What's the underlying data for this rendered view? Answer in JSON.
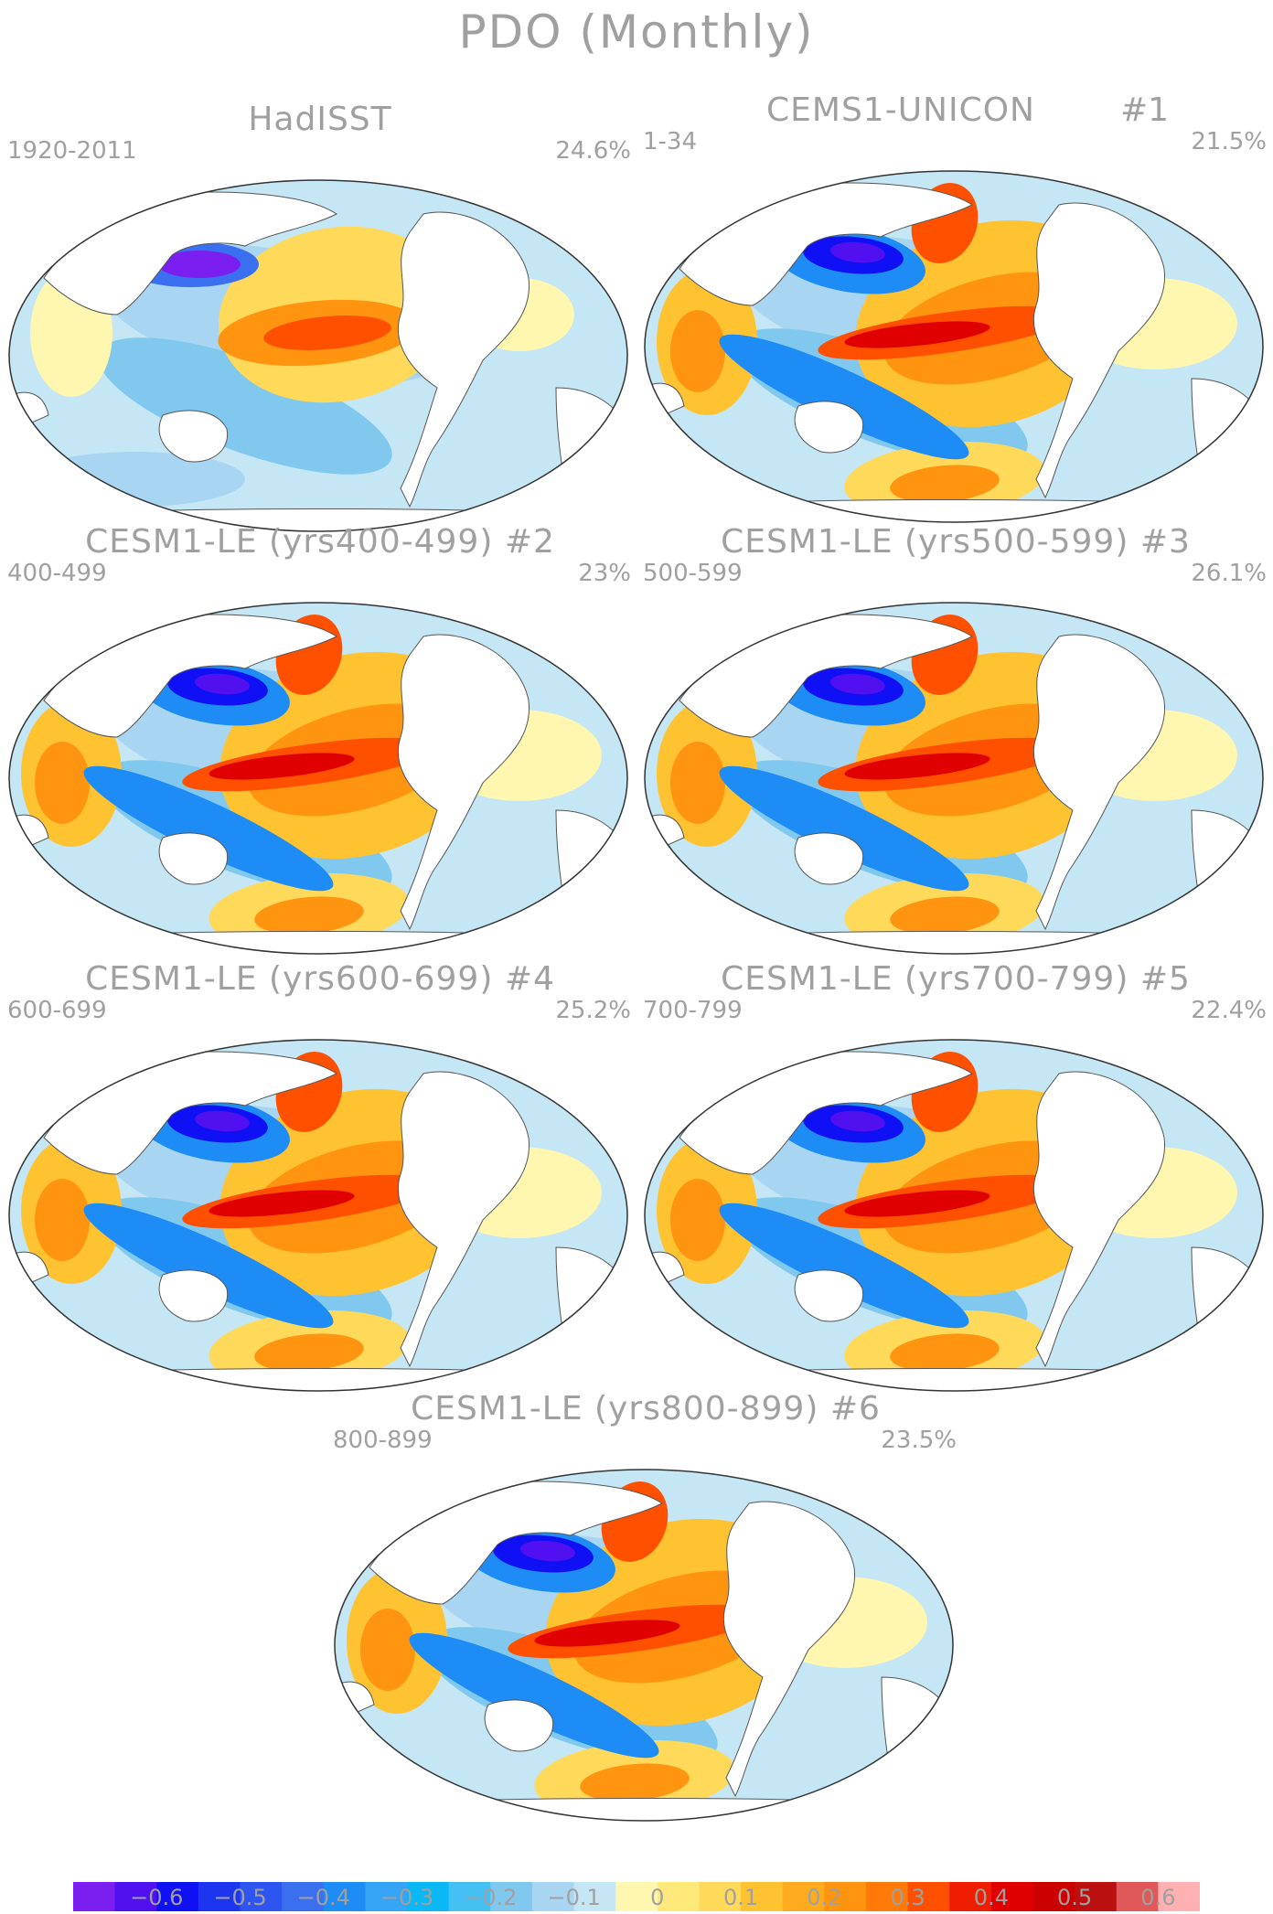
{
  "title": "PDO (Monthly)",
  "panels": [
    {
      "name": "HadISST",
      "number": "",
      "years": "1920-2011",
      "variance": "24.6%"
    },
    {
      "name": "CEMS1-UNICON",
      "number": "#1",
      "years": "1-34",
      "variance": "21.5%"
    },
    {
      "name": "CESM1-LE (yrs400-499)",
      "number": "#2",
      "years": "400-499",
      "variance": "23%"
    },
    {
      "name": "CESM1-LE (yrs500-599)",
      "number": "#3",
      "years": "500-599",
      "variance": "26.1%"
    },
    {
      "name": "CESM1-LE (yrs600-699)",
      "number": "#4",
      "years": "600-699",
      "variance": "25.2%"
    },
    {
      "name": "CESM1-LE (yrs700-799)",
      "number": "#5",
      "years": "700-799",
      "variance": "22.4%"
    },
    {
      "name": "CESM1-LE (yrs800-899)",
      "number": "#6",
      "years": "800-899",
      "variance": "23.5%"
    }
  ],
  "colorbar": {
    "labels": [
      "−0.6",
      "−0.5",
      "−0.4",
      "−0.3",
      "−0.2",
      "−0.1",
      "0",
      "0.1",
      "0.2",
      "0.3",
      "0.4",
      "0.5",
      "0.6"
    ],
    "colors": [
      "#7a1ff0",
      "#5010f0",
      "#1010f5",
      "#1e35f0",
      "#2f55f0",
      "#3a6ff0",
      "#1e8cf5",
      "#35a5f5",
      "#0ab8f5",
      "#45c0f5",
      "#80c8ee",
      "#a8d5f2",
      "#c5e6f5",
      "#fff7b0",
      "#ffe97a",
      "#ffd95a",
      "#ffc332",
      "#ffab20",
      "#ff9410",
      "#ff7a08",
      "#ff5000",
      "#f01e00",
      "#e00000",
      "#cc0000",
      "#bb1010",
      "#e05858",
      "#ffb0b0"
    ]
  }
}
